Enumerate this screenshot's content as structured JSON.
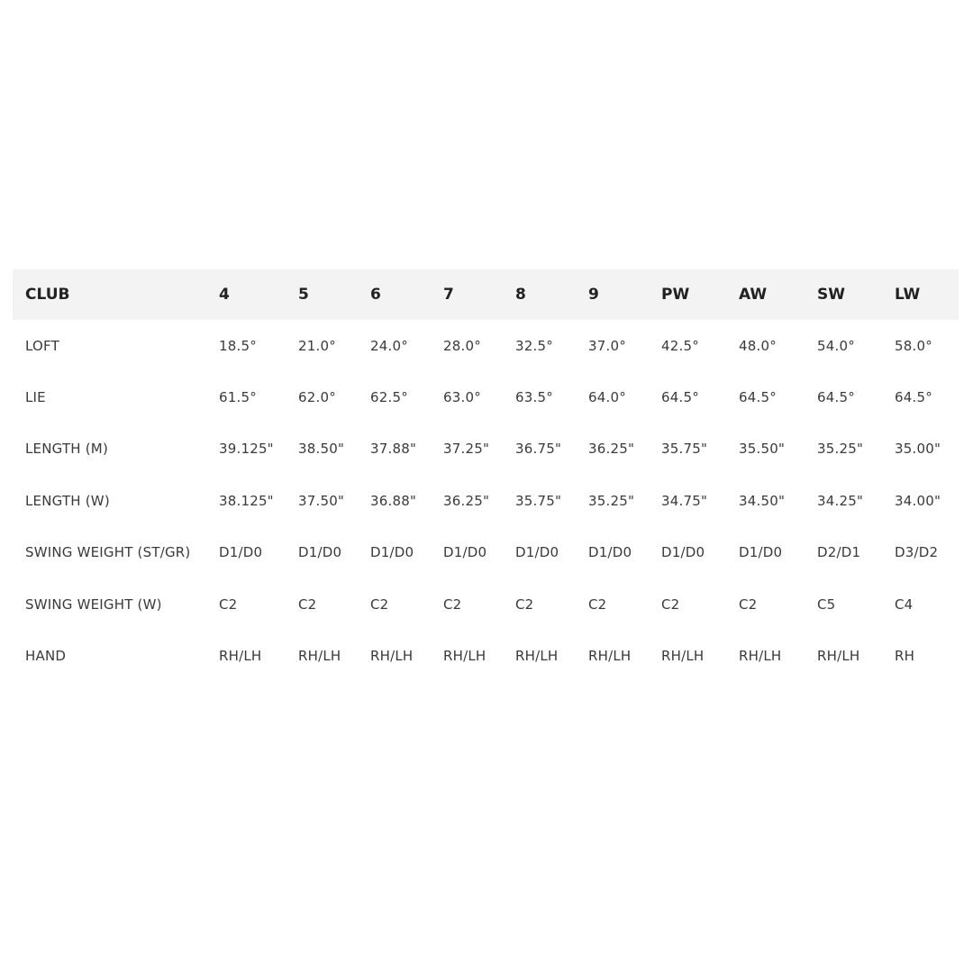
{
  "table": {
    "header": [
      "CLUB",
      "4",
      "5",
      "6",
      "7",
      "8",
      "9",
      "PW",
      "AW",
      "SW",
      "LW"
    ],
    "rows": [
      {
        "label": "LOFT",
        "values": [
          "18.5°",
          "21.0°",
          "24.0°",
          "28.0°",
          "32.5°",
          "37.0°",
          "42.5°",
          "48.0°",
          "54.0°",
          "58.0°"
        ]
      },
      {
        "label": "LIE",
        "values": [
          "61.5°",
          "62.0°",
          "62.5°",
          "63.0°",
          "63.5°",
          "64.0°",
          "64.5°",
          "64.5°",
          "64.5°",
          "64.5°"
        ]
      },
      {
        "label": "LENGTH (M)",
        "values": [
          "39.125\"",
          "38.50\"",
          "37.88\"",
          "37.25\"",
          "36.75\"",
          "36.25\"",
          "35.75\"",
          "35.50\"",
          "35.25\"",
          "35.00\""
        ]
      },
      {
        "label": "LENGTH (W)",
        "values": [
          "38.125\"",
          "37.50\"",
          "36.88\"",
          "36.25\"",
          "35.75\"",
          "35.25\"",
          "34.75\"",
          "34.50\"",
          "34.25\"",
          "34.00\""
        ]
      },
      {
        "label": "SWING WEIGHT (ST/GR)",
        "values": [
          "D1/D0",
          "D1/D0",
          "D1/D0",
          "D1/D0",
          "D1/D0",
          "D1/D0",
          "D1/D0",
          "D1/D0",
          "D2/D1",
          "D3/D2"
        ]
      },
      {
        "label": "SWING WEIGHT (W)",
        "values": [
          "C2",
          "C2",
          "C2",
          "C2",
          "C2",
          "C2",
          "C2",
          "C2",
          "C5",
          "C4"
        ]
      },
      {
        "label": "HAND",
        "values": [
          "RH/LH",
          "RH/LH",
          "RH/LH",
          "RH/LH",
          "RH/LH",
          "RH/LH",
          "RH/LH",
          "RH/LH",
          "RH/LH",
          "RH"
        ]
      }
    ]
  },
  "colors": {
    "header_bg": "#f3f3f3",
    "text": "#3a3a3a"
  }
}
